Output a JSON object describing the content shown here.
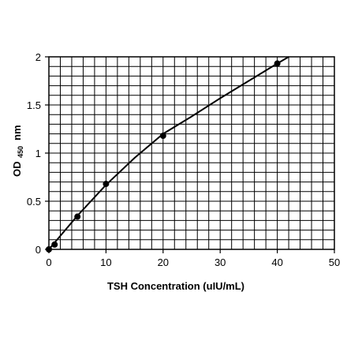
{
  "chart_data": {
    "type": "scatter",
    "title": "",
    "xlabel": "TSH Concentration (uIU/mL)",
    "ylabel_parts": [
      "OD",
      "450",
      "nm"
    ],
    "xlim": [
      0,
      50
    ],
    "ylim": [
      0,
      2
    ],
    "x_ticks": [
      "0",
      "10",
      "20",
      "30",
      "40",
      "50"
    ],
    "y_ticks": [
      "0",
      "0.5",
      "1",
      "1.5",
      "2"
    ],
    "grid": true,
    "grid_minor_x_step": 2,
    "grid_minor_y_step": 0.1,
    "legend": "none",
    "series": [
      {
        "points": [
          {
            "x": 0,
            "y": 0.0
          },
          {
            "x": 1,
            "y": 0.05
          },
          {
            "x": 5,
            "y": 0.34
          },
          {
            "x": 10,
            "y": 0.68
          },
          {
            "x": 20,
            "y": 1.18
          },
          {
            "x": 40,
            "y": 1.93
          }
        ],
        "fit_line": [
          {
            "x": 0,
            "y": 0.0
          },
          {
            "x": 1,
            "y": 0.07
          },
          {
            "x": 5,
            "y": 0.35
          },
          {
            "x": 10,
            "y": 0.67
          },
          {
            "x": 15,
            "y": 0.95
          },
          {
            "x": 20,
            "y": 1.2
          },
          {
            "x": 25,
            "y": 1.38
          },
          {
            "x": 30,
            "y": 1.57
          },
          {
            "x": 35,
            "y": 1.75
          },
          {
            "x": 40,
            "y": 1.93
          },
          {
            "x": 42,
            "y": 2.0
          }
        ]
      }
    ],
    "colors": {
      "line": "#000000",
      "marker": "#000000",
      "grid": "#000000"
    }
  }
}
